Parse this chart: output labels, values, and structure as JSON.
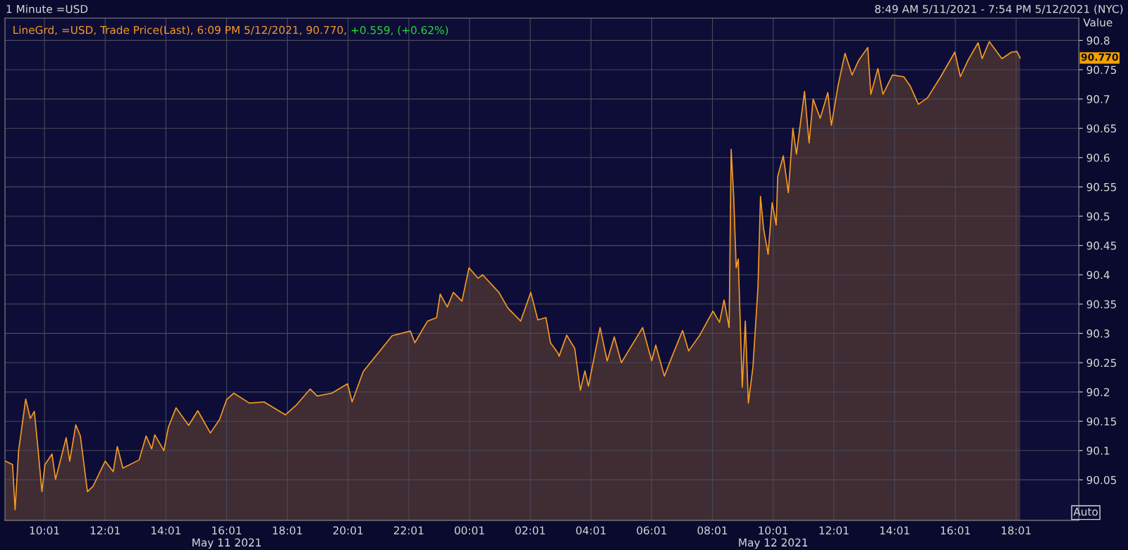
{
  "chart_data": {
    "type": "area",
    "title": "1 Minute =USD",
    "ylabel": "Value",
    "annotations": [
      "8:49 AM 5/11/2021 - 7:54 PM 5/12/2021 (NYC)",
      "+0.559, (+0.62%)",
      "Auto",
      "90.770"
    ],
    "x": [
      "2021-05-11T08:44",
      "2021-05-11T08:58",
      "2021-05-11T09:03",
      "2021-05-11T09:10",
      "2021-05-11T09:24",
      "2021-05-11T09:33",
      "2021-05-11T09:41",
      "2021-05-11T09:48",
      "2021-05-11T09:56",
      "2021-05-11T10:02",
      "2021-05-11T10:16",
      "2021-05-11T10:23",
      "2021-05-11T10:44",
      "2021-05-11T10:51",
      "2021-05-11T11:03",
      "2021-05-11T11:12",
      "2021-05-11T11:26",
      "2021-05-11T11:37",
      "2021-05-11T12:01",
      "2021-05-11T12:17",
      "2021-05-11T12:25",
      "2021-05-11T12:36",
      "2021-05-11T13:08",
      "2021-05-11T13:22",
      "2021-05-11T13:33",
      "2021-05-11T13:39",
      "2021-05-11T13:57",
      "2021-05-11T14:06",
      "2021-05-11T14:21",
      "2021-05-11T14:46",
      "2021-05-11T15:04",
      "2021-05-11T15:29",
      "2021-05-11T15:47",
      "2021-05-11T16:01",
      "2021-05-11T16:15",
      "2021-05-11T16:46",
      "2021-05-11T17:15",
      "2021-05-11T17:57",
      "2021-05-11T18:18",
      "2021-05-11T18:46",
      "2021-05-11T19:00",
      "2021-05-11T19:29",
      "2021-05-11T20:00",
      "2021-05-11T20:09",
      "2021-05-11T20:31",
      "2021-05-11T21:00",
      "2021-05-11T21:28",
      "2021-05-11T22:04",
      "2021-05-11T22:13",
      "2021-05-11T22:38",
      "2021-05-11T22:56",
      "2021-05-11T23:03",
      "2021-05-11T23:17",
      "2021-05-11T23:29",
      "2021-05-11T23:46",
      "2021-05-12T00:00",
      "2021-05-12T00:18",
      "2021-05-12T00:27",
      "2021-05-12T00:59",
      "2021-05-12T01:17",
      "2021-05-12T01:42",
      "2021-05-12T02:02",
      "2021-05-12T02:16",
      "2021-05-12T02:32",
      "2021-05-12T02:41",
      "2021-05-12T02:56",
      "2021-05-12T02:58",
      "2021-05-12T03:13",
      "2021-05-12T03:29",
      "2021-05-12T03:40",
      "2021-05-12T03:49",
      "2021-05-12T03:56",
      "2021-05-12T04:19",
      "2021-05-12T04:33",
      "2021-05-12T04:47",
      "2021-05-12T05:01",
      "2021-05-12T05:43",
      "2021-05-12T06:01",
      "2021-05-12T06:09",
      "2021-05-12T06:26",
      "2021-05-12T06:40",
      "2021-05-12T07:02",
      "2021-05-12T07:14",
      "2021-05-12T07:36",
      "2021-05-12T08:02",
      "2021-05-12T08:15",
      "2021-05-12T08:24",
      "2021-05-12T08:34",
      "2021-05-12T08:38",
      "2021-05-12T08:43",
      "2021-05-12T08:48",
      "2021-05-12T08:52",
      "2021-05-12T09:00",
      "2021-05-12T09:06",
      "2021-05-12T09:12",
      "2021-05-12T09:21",
      "2021-05-12T09:31",
      "2021-05-12T09:36",
      "2021-05-12T09:42",
      "2021-05-12T09:51",
      "2021-05-12T09:59",
      "2021-05-12T10:07",
      "2021-05-12T10:10",
      "2021-05-12T10:21",
      "2021-05-12T10:31",
      "2021-05-12T10:40",
      "2021-05-12T10:47",
      "2021-05-12T11:03",
      "2021-05-12T11:12",
      "2021-05-12T11:20",
      "2021-05-12T11:34",
      "2021-05-12T11:49",
      "2021-05-12T11:56",
      "2021-05-12T12:09",
      "2021-05-12T12:23",
      "2021-05-12T12:37",
      "2021-05-12T12:50",
      "2021-05-12T13:08",
      "2021-05-12T13:14",
      "2021-05-12T13:28",
      "2021-05-12T13:38",
      "2021-05-12T13:57",
      "2021-05-12T14:19",
      "2021-05-12T14:32",
      "2021-05-12T14:48",
      "2021-05-12T15:06",
      "2021-05-12T15:32",
      "2021-05-12T16:00",
      "2021-05-12T16:11",
      "2021-05-12T16:26",
      "2021-05-12T16:46",
      "2021-05-12T16:54",
      "2021-05-12T17:08",
      "2021-05-12T17:33",
      "2021-05-12T17:52",
      "2021-05-12T18:03",
      "2021-05-12T18:09"
    ],
    "series": [
      {
        "name": "LineGrd, =USD, Trade Price(Last), 6:09 PM 5/12/2021, 90.770,",
        "color": "#f59a23",
        "values": [
          90.082,
          90.076,
          89.999,
          90.1,
          90.188,
          90.155,
          90.167,
          90.106,
          90.03,
          90.076,
          90.094,
          90.051,
          90.122,
          90.082,
          90.144,
          90.125,
          90.03,
          90.039,
          90.082,
          90.064,
          90.107,
          90.07,
          90.084,
          90.125,
          90.103,
          90.127,
          90.1,
          90.14,
          90.173,
          90.143,
          90.168,
          90.13,
          90.153,
          90.187,
          90.198,
          90.181,
          90.183,
          90.161,
          90.177,
          90.205,
          90.193,
          90.198,
          90.214,
          90.183,
          90.235,
          90.266,
          90.296,
          90.304,
          90.284,
          90.321,
          90.327,
          90.367,
          90.345,
          90.37,
          90.355,
          90.412,
          90.394,
          90.4,
          90.37,
          90.343,
          90.321,
          90.37,
          90.323,
          90.327,
          90.284,
          90.266,
          90.261,
          90.297,
          90.274,
          90.203,
          90.236,
          90.21,
          90.31,
          90.253,
          90.294,
          90.25,
          90.31,
          90.253,
          90.28,
          90.227,
          90.258,
          90.305,
          90.27,
          90.297,
          90.338,
          90.319,
          90.357,
          90.31,
          90.614,
          90.534,
          90.412,
          90.427,
          90.208,
          90.321,
          90.181,
          90.242,
          90.379,
          90.534,
          90.479,
          90.435,
          90.523,
          90.485,
          90.568,
          90.603,
          90.54,
          90.65,
          90.606,
          90.713,
          90.625,
          90.7,
          90.667,
          90.711,
          90.655,
          90.722,
          90.778,
          90.741,
          90.766,
          90.788,
          90.708,
          90.752,
          90.708,
          90.741,
          90.738,
          90.722,
          90.691,
          90.702,
          90.738,
          90.78,
          90.738,
          90.766,
          90.796,
          90.769,
          90.798,
          90.769,
          90.78,
          90.781,
          90.77
        ]
      }
    ],
    "xlim": [
      "2021-05-11T08:43",
      "2021-05-12T20:05"
    ],
    "xticks": [
      {
        "value": "2021-05-11T10:01",
        "label": "10:01"
      },
      {
        "value": "2021-05-11T12:01",
        "label": "12:01"
      },
      {
        "value": "2021-05-11T14:01",
        "label": "14:01"
      },
      {
        "value": "2021-05-11T16:01",
        "label": "16:01\nMay 11 2021"
      },
      {
        "value": "2021-05-11T18:01",
        "label": "18:01"
      },
      {
        "value": "2021-05-11T20:01",
        "label": "20:01"
      },
      {
        "value": "2021-05-11T22:01",
        "label": "22:01"
      },
      {
        "value": "2021-05-12T00:01",
        "label": "00:01"
      },
      {
        "value": "2021-05-12T02:01",
        "label": "02:01"
      },
      {
        "value": "2021-05-12T04:01",
        "label": "04:01"
      },
      {
        "value": "2021-05-12T06:01",
        "label": "06:01"
      },
      {
        "value": "2021-05-12T08:01",
        "label": "08:01"
      },
      {
        "value": "2021-05-12T10:01",
        "label": "10:01\nMay 12 2021"
      },
      {
        "value": "2021-05-12T12:01",
        "label": "12:01"
      },
      {
        "value": "2021-05-12T14:01",
        "label": "14:01"
      },
      {
        "value": "2021-05-12T16:01",
        "label": "16:01"
      },
      {
        "value": "2021-05-12T18:01",
        "label": "18:01"
      }
    ],
    "ylim": [
      89.981,
      90.838
    ],
    "yticks": [
      90.05,
      90.1,
      90.15,
      90.2,
      90.25,
      90.3,
      90.35,
      90.4,
      90.45,
      90.5,
      90.55,
      90.6,
      90.65,
      90.7,
      90.75,
      90.8
    ],
    "grid": true,
    "legend": "top left",
    "marker": "none",
    "line_style": "solid"
  }
}
